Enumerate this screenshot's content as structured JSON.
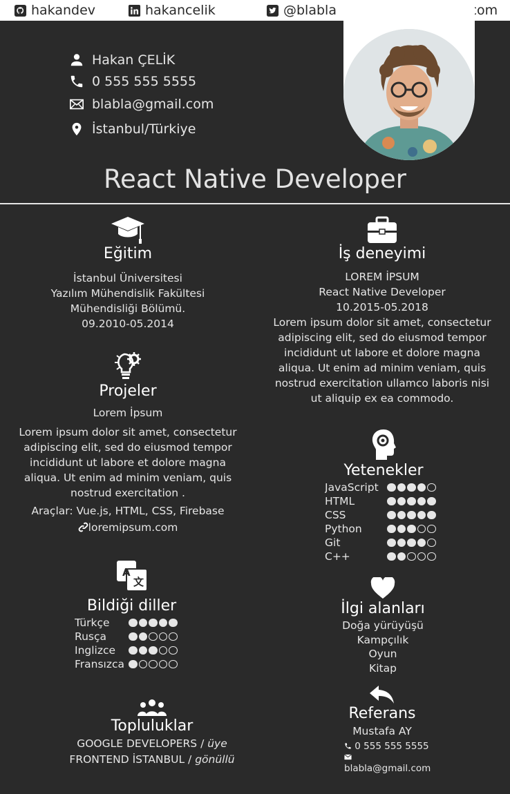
{
  "social": {
    "github": "hakandev",
    "linkedin": "hakancelik",
    "twitter": "@blabla",
    "website": "hakandev.com"
  },
  "contact": {
    "name": "Hakan ÇELİK",
    "phone": "0 555 555 5555",
    "email": "blabla@gmail.com",
    "location": "İstanbul/Türkiye"
  },
  "headline": "React Native Developer",
  "education": {
    "title": "Eğitim",
    "lines": [
      "İstanbul Üniversitesi",
      "Yazılım Mühendislik Fakültesi",
      "Mühendisliği Bölümü.",
      "09.2010-05.2014"
    ]
  },
  "experience": {
    "title": "İş deneyimi",
    "company": "LOREM İPSUM",
    "role": "React Native Developer",
    "dates": "10.2015-05.2018",
    "description": [
      "Lorem ipsum dolor sit amet, consectetur",
      "adipiscing elit, sed do eiusmod tempor",
      "incididunt ut labore et dolore magna",
      "aliqua. Ut enim ad minim veniam, quis",
      "nostrud exercitation ullamco laboris nisi",
      "ut aliquip ex ea commodo."
    ]
  },
  "projects": {
    "title": "Projeler",
    "name": "Lorem İpsum",
    "description": [
      "Lorem ipsum dolor sit amet, consectetur",
      "adipiscing elit, sed do eiusmod tempor",
      "incididunt ut labore et dolore magna",
      "aliqua. Ut enim ad minim veniam, quis",
      "nostrud exercitation ."
    ],
    "tools": "Araçlar: Vue.js, HTML, CSS, Firebase",
    "link": "loremipsum.com"
  },
  "skills": {
    "title": "Yetenekler",
    "items": [
      {
        "name": "JavaScript",
        "level": 4
      },
      {
        "name": "HTML",
        "level": 5
      },
      {
        "name": "CSS",
        "level": 5
      },
      {
        "name": "Python",
        "level": 3
      },
      {
        "name": "Git",
        "level": 4
      },
      {
        "name": "C++",
        "level": 2
      }
    ],
    "max": 5
  },
  "languages": {
    "title": "Bildiği diller",
    "items": [
      {
        "name": "Türkçe",
        "level": 5
      },
      {
        "name": "Rusça",
        "level": 2
      },
      {
        "name": "Inglizce",
        "level": 3
      },
      {
        "name": "Fransızca",
        "level": 1
      }
    ],
    "max": 5
  },
  "interests": {
    "title": "İlgi alanları",
    "items": [
      "Doğa yürüyüşü",
      "Kampçılık",
      "Oyun",
      "Kitap"
    ]
  },
  "communities": {
    "title": "Topluluklar",
    "items": [
      {
        "org": "GOOGLE DEVELOPERS /",
        "role": "üye"
      },
      {
        "org": "FRONTEND İSTANBUL /",
        "role": "gönüllü"
      }
    ]
  },
  "reference": {
    "title": "Referans",
    "name": "Mustafa AY",
    "phone": "0 555 555 5555",
    "email": "blabla@gmail.com"
  },
  "icons": {
    "social": [
      "github-icon",
      "linkedin-icon",
      "twitter-icon",
      "globe-icon"
    ],
    "contact": [
      "person-icon",
      "phone-icon",
      "mail-icon",
      "location-pin-icon"
    ],
    "sections": [
      "graduation-cap-icon",
      "briefcase-icon",
      "lightbulb-gear-icon",
      "head-gear-icon",
      "translate-icon",
      "heart-icon",
      "group-icon",
      "reply-arrow-icon"
    ]
  },
  "colors": {
    "background": "#2a2a2a",
    "text": "#e6e6e6",
    "bar": "#ffffff"
  }
}
